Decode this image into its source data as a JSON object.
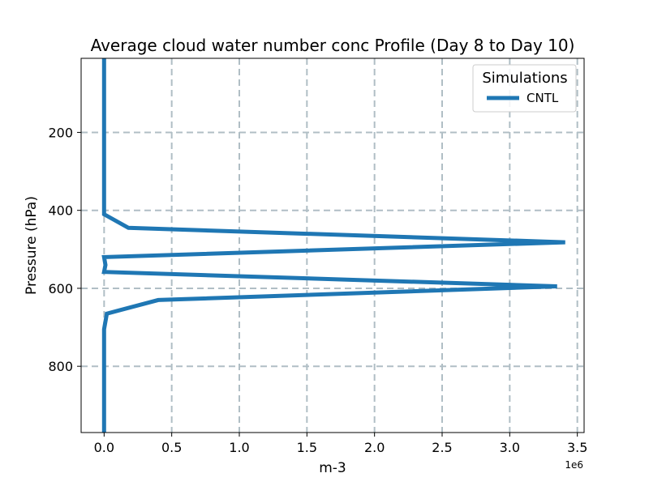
{
  "chart_data": {
    "type": "line",
    "title": "Average cloud water number conc Profile (Day 8 to Day 10)",
    "xlabel": "m-3",
    "ylabel": "Pressure (hPa)",
    "x_offset_text": "1e6",
    "x_scale": 1000000,
    "xlim": [
      -0.17,
      3.55
    ],
    "ylim": [
      970,
      10
    ],
    "y_inverted": true,
    "xticks": [
      0,
      0.5,
      1.0,
      1.5,
      2.0,
      2.5,
      3.0,
      3.5
    ],
    "xtick_labels": [
      "0.0",
      "0.5",
      "1.0",
      "1.5",
      "2.0",
      "2.5",
      "3.0",
      "3.5"
    ],
    "yticks": [
      200,
      400,
      600,
      800
    ],
    "ytick_labels": [
      "200",
      "400",
      "600",
      "800"
    ],
    "grid": true,
    "legend": {
      "title": "Simulations",
      "placement": "top-right"
    },
    "series": [
      {
        "name": "CNTL",
        "color": "#1f77b4",
        "x": [
          0,
          0,
          0,
          0,
          0.18,
          3.41,
          0.0,
          0.01,
          0.0,
          3.35,
          0.4,
          0.02,
          0.0,
          0.0
        ],
        "y": [
          10,
          100,
          300,
          410,
          445,
          482,
          520,
          540,
          558,
          595,
          630,
          665,
          705,
          970
        ]
      }
    ]
  }
}
